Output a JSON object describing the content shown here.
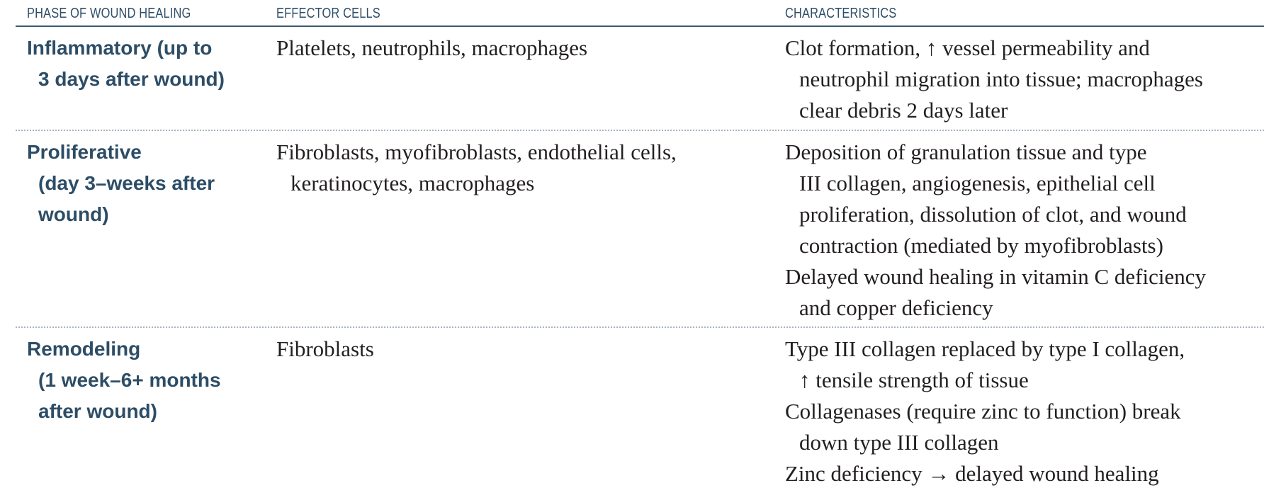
{
  "headers": {
    "phase": "PHASE OF WOUND HEALING",
    "effector": "EFFECTOR CELLS",
    "characteristics": "CHARACTERISTICS"
  },
  "rows": [
    {
      "phase_lines": [
        "Inflammatory (up to",
        "3 days after wound)"
      ],
      "effector_lines": [
        "Platelets, neutrophils, macrophages"
      ],
      "characteristics_lines": [
        "Clot formation, ↑ vessel permeability and",
        "neutrophil migration into tissue; macrophages",
        "clear debris 2 days later"
      ]
    },
    {
      "phase_lines": [
        "Proliferative",
        "(day 3–weeks after",
        "wound)"
      ],
      "effector_lines": [
        "Fibroblasts, myofibroblasts, endothelial cells,",
        "keratinocytes, macrophages"
      ],
      "characteristics_lines": [
        "Deposition of granulation tissue and type",
        "III collagen, angiogenesis, epithelial cell",
        "proliferation, dissolution of clot, and wound",
        "contraction (mediated by myofibroblasts)",
        "Delayed wound healing in vitamin C deficiency",
        "and copper deficiency"
      ]
    },
    {
      "phase_lines": [
        "Remodeling",
        "(1 week–6+ months",
        "after wound)"
      ],
      "effector_lines": [
        "Fibroblasts"
      ],
      "characteristics_lines": [
        "Type III collagen replaced by type I collagen,",
        "↑ tensile strength of tissue",
        "Collagenases (require zinc to function) break",
        "down type III collagen",
        "Zinc deficiency → delayed wound healing"
      ]
    }
  ]
}
